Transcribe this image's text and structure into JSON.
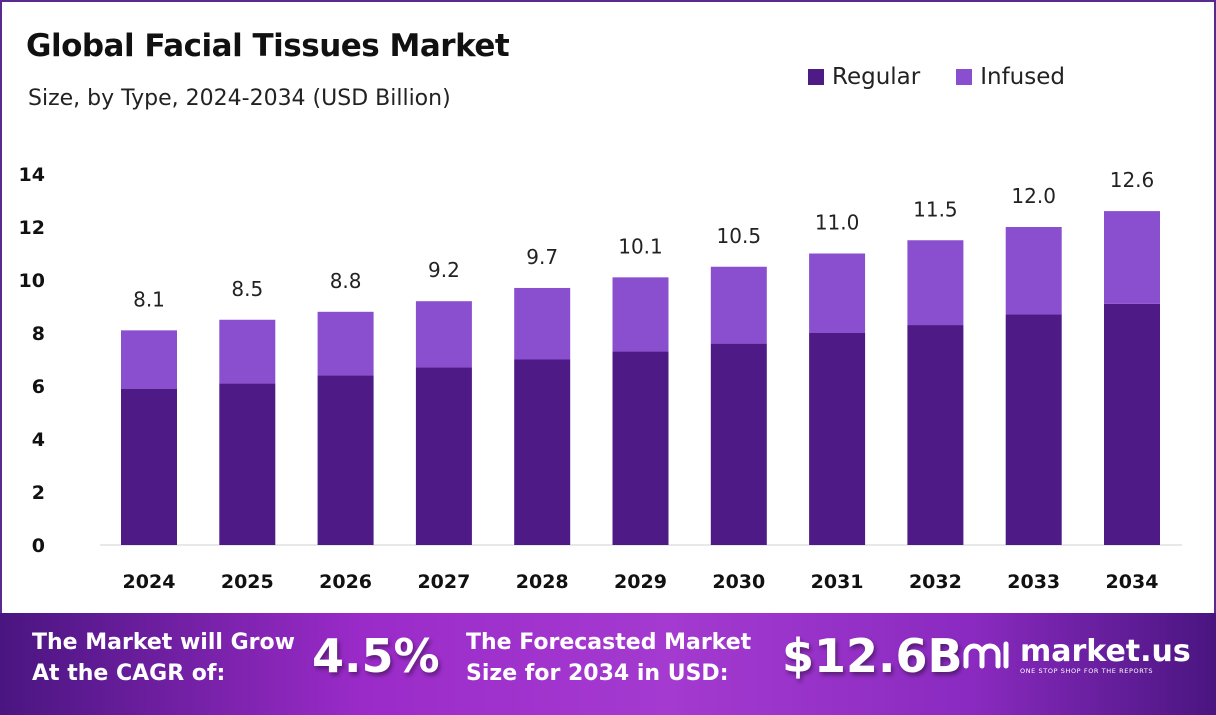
{
  "chart_data": {
    "type": "bar",
    "stacked": true,
    "title": "Global Facial Tissues Market",
    "subtitle": "Size, by Type, 2024-2034 (USD Billion)",
    "categories": [
      "2024",
      "2025",
      "2026",
      "2027",
      "2028",
      "2029",
      "2030",
      "2031",
      "2032",
      "2033",
      "2034"
    ],
    "series": [
      {
        "name": "Regular",
        "color": "#4e1a85",
        "values": [
          5.9,
          6.1,
          6.4,
          6.7,
          7.0,
          7.3,
          7.6,
          8.0,
          8.3,
          8.7,
          9.1
        ]
      },
      {
        "name": "Infused",
        "color": "#8a4fcf",
        "values": [
          2.2,
          2.4,
          2.4,
          2.5,
          2.7,
          2.8,
          2.9,
          3.0,
          3.2,
          3.3,
          3.5
        ]
      }
    ],
    "totals": [
      "8.1",
      "8.5",
      "8.8",
      "9.2",
      "9.7",
      "10.1",
      "10.5",
      "11.0",
      "11.5",
      "12.0",
      "12.6"
    ],
    "yticks": [
      "0",
      "2",
      "4",
      "6",
      "8",
      "10",
      "12",
      "14"
    ],
    "ylim": [
      0,
      14
    ],
    "grid": false,
    "legend_position": "top-right"
  },
  "footer": {
    "cagr_text_1": "The Market will Grow",
    "cagr_text_2": "At the CAGR of:",
    "cagr_value": "4.5%",
    "forecast_text_1": "The Forecasted Market",
    "forecast_text_2": "Size for 2034 in USD:",
    "forecast_value": "$12.6B",
    "logo_name": "market.us",
    "logo_tagline": "ONE STOP SHOP FOR THE REPORTS"
  }
}
